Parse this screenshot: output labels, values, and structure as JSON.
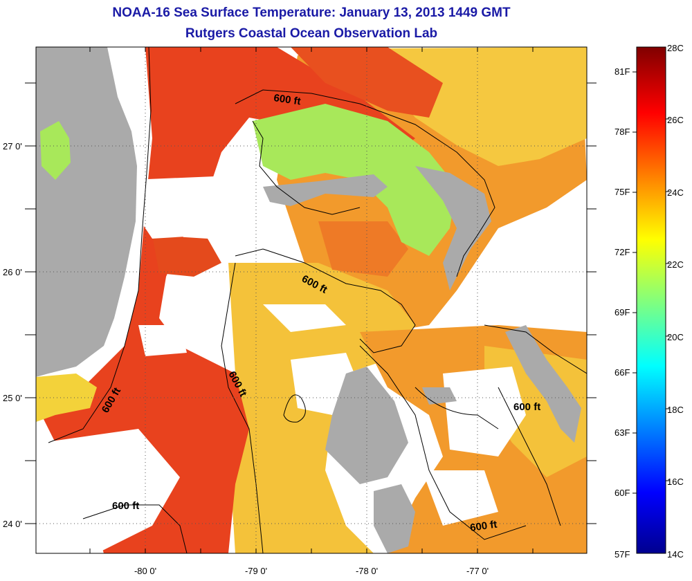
{
  "title": "NOAA-16 Sea Surface Temperature:  January 13, 2013 1449 GMT",
  "subtitle": "Rutgers Coastal Ocean Observation Lab",
  "map": {
    "x_ticks": [
      "-80 0'",
      "-79 0'",
      "-78 0'",
      "-77 0'"
    ],
    "y_ticks": [
      "27 0'",
      "26 0'",
      "25 0'",
      "24 0'"
    ],
    "contour_labels": [
      "600 ft",
      "600 ft",
      "600 ft",
      "600 ft",
      "600 ft",
      "600 ft"
    ],
    "colors": {
      "land": "#aaaaaa",
      "cloud": "#ffffff",
      "warm_red": "#e8421e",
      "orange": "#f28a24",
      "yellow": "#f2c12e",
      "green": "#a8e85a"
    }
  },
  "colorbar": {
    "celsius_labels": [
      "28C",
      "26C",
      "24C",
      "22C",
      "20C",
      "18C",
      "16C",
      "14C"
    ],
    "fahrenheit_labels": [
      "81F",
      "78F",
      "75F",
      "72F",
      "69F",
      "66F",
      "63F",
      "60F",
      "57F"
    ],
    "range_c": [
      14,
      28
    ]
  }
}
